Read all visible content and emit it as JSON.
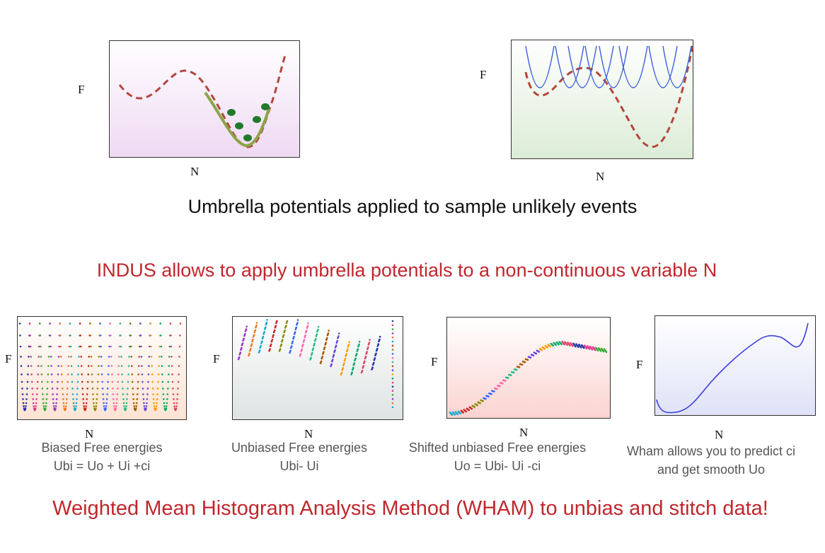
{
  "top_left_plot": {
    "y_label": "F",
    "x_label": "N"
  },
  "top_right_plot": {
    "y_label": "F",
    "x_label": "N"
  },
  "umbrella_caption": "Umbrella potentials applied to sample unlikely events",
  "indus_statement": "INDUS allows to apply umbrella potentials to a non-continuous variable N",
  "panels": [
    {
      "y_label": "F",
      "x_label": "N",
      "caption_line1": "Biased Free energies",
      "caption_line2": "Ubi = Uo + Ui +ci"
    },
    {
      "y_label": "F",
      "x_label": "N",
      "caption_line1": "Unbiased Free energies",
      "caption_line2": "Ubi- Ui"
    },
    {
      "y_label": "F",
      "x_label": "N",
      "caption_line1": "Shifted unbiased Free energies",
      "caption_line2": "Uo = Ubi- Ui -ci"
    },
    {
      "y_label": "F",
      "x_label": "N",
      "caption_line1": "Wham allows you to predict ci",
      "caption_line2": "and get smooth Uo"
    }
  ],
  "wham_statement": "Weighted Mean Histogram Analysis Method (WHAM) to unbias and stitch data!",
  "colors": {
    "accent_red": "#c0272d",
    "dashed_curve": "#b5463c",
    "umbrella_blue": "#3a5fd9",
    "wham_curve": "#3d3de0"
  }
}
